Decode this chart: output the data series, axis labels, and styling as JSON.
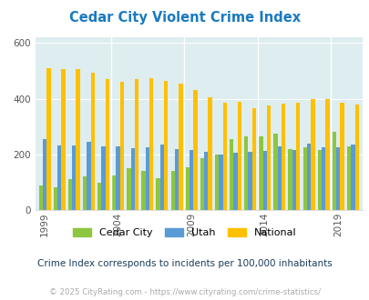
{
  "title": "Cedar City Violent Crime Index",
  "subtitle": "Crime Index corresponds to incidents per 100,000 inhabitants",
  "footer": "© 2025 CityRating.com - https://www.cityrating.com/crime-statistics/",
  "years": [
    1999,
    2000,
    2001,
    2002,
    2003,
    2004,
    2005,
    2006,
    2007,
    2008,
    2009,
    2010,
    2011,
    2012,
    2013,
    2014,
    2015,
    2016,
    2017,
    2018,
    2019,
    2020
  ],
  "cedar_city": [
    88,
    83,
    110,
    120,
    98,
    125,
    150,
    140,
    115,
    140,
    155,
    185,
    200,
    255,
    265,
    265,
    275,
    220,
    225,
    215,
    280,
    230
  ],
  "utah": [
    255,
    232,
    232,
    245,
    230,
    228,
    222,
    225,
    235,
    220,
    215,
    210,
    200,
    205,
    208,
    213,
    230,
    215,
    240,
    225,
    225,
    235
  ],
  "national": [
    510,
    508,
    508,
    494,
    472,
    460,
    469,
    473,
    465,
    455,
    430,
    405,
    387,
    390,
    366,
    375,
    382,
    387,
    400,
    397,
    384,
    379
  ],
  "colors": {
    "cedar_city": "#8dc63f",
    "utah": "#5b9bd5",
    "national": "#ffc000"
  },
  "ylim": [
    0,
    620
  ],
  "yticks": [
    0,
    200,
    400,
    600
  ],
  "background_color": "#deedf0",
  "title_color": "#1a7abf",
  "subtitle_color": "#1a3c5a",
  "footer_color": "#aaaaaa",
  "labeled_years": [
    1999,
    2004,
    2009,
    2014,
    2019
  ]
}
